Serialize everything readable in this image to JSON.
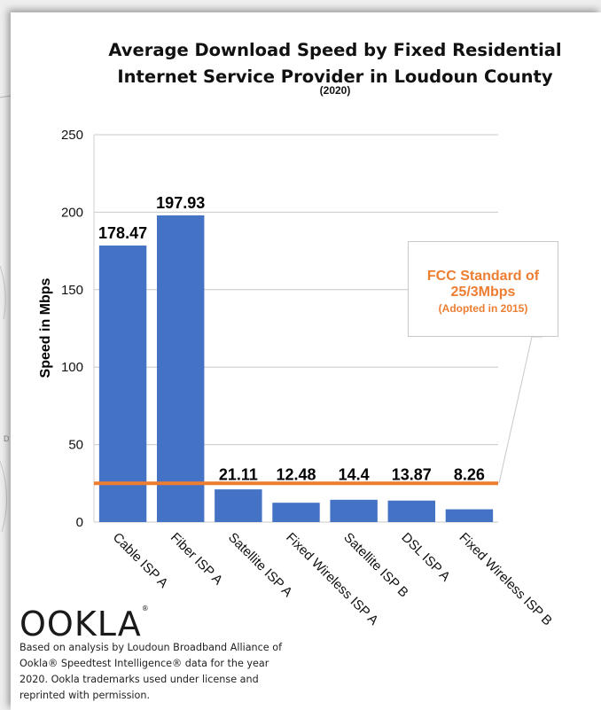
{
  "chart_data": {
    "type": "bar",
    "title": "Average Download Speed by Fixed Residential Internet Service Provider in Loudoun County",
    "subtitle": "(2020)",
    "xlabel": "",
    "ylabel": "Speed in Mbps",
    "ylim": [
      0,
      250
    ],
    "yticks": [
      "0",
      "50",
      "100",
      "150",
      "200",
      "250"
    ],
    "categories": [
      "Cable ISP A",
      "Fiber ISP A",
      "Satellite ISP A",
      "Fixed Wireless ISP A",
      "Satellite ISP B",
      "DSL ISP A",
      "Fixed Wireless ISP B"
    ],
    "values": [
      178.47,
      197.93,
      21.11,
      12.48,
      14.4,
      13.87,
      8.26
    ],
    "data_labels": [
      "178.47",
      "197.93",
      "21.11",
      "12.48",
      "14.4",
      "13.87",
      "8.26"
    ],
    "reference_line": {
      "value": 25,
      "color": "#ed7d31"
    },
    "bar_color": "#4472c4",
    "grid": true,
    "annotation": {
      "line1": "FCC Standard of",
      "line2": "25/3Mbps",
      "line3": "(Adopted in 2015)"
    }
  },
  "logo": {
    "text": "OOKLA",
    "mark": "®"
  },
  "credit": "Based on analysis by Loudoun Broadband Alliance of Ookla® Speedtest Intelligence® data for the year 2020. Ookla trademarks used under license and reprinted with permission.",
  "side_letter": "D"
}
